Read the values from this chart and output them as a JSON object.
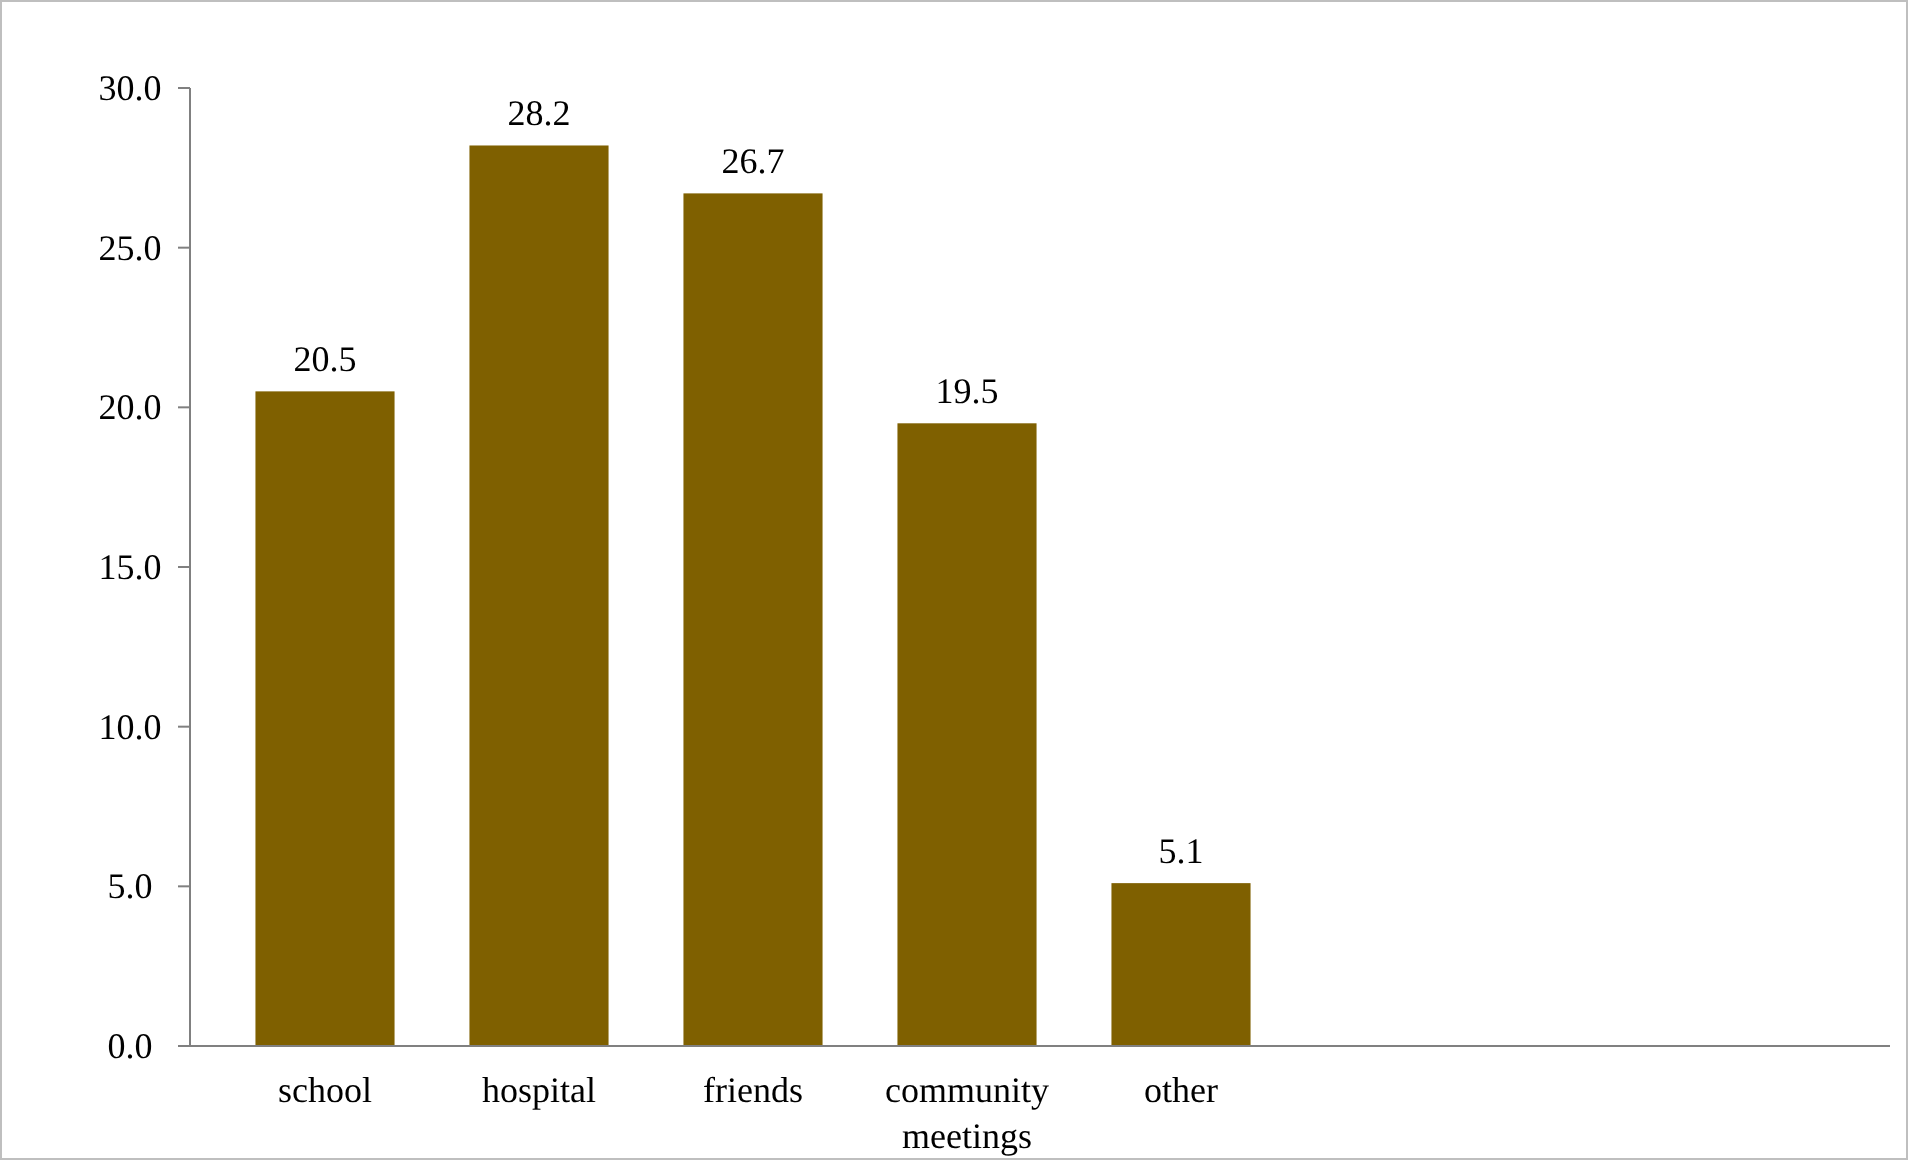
{
  "chart_data": {
    "type": "bar",
    "categories": [
      "school",
      "hospital",
      "friends",
      "community meetings",
      "other"
    ],
    "values": [
      20.5,
      28.2,
      26.7,
      19.5,
      5.1
    ],
    "color": "#7f6000",
    "ylim": [
      0,
      30
    ],
    "yticks": [
      {
        "value": 0,
        "label": "0.0"
      },
      {
        "value": 5,
        "label": "5.0"
      },
      {
        "value": 10,
        "label": "10.0"
      },
      {
        "value": 15,
        "label": "15.0"
      },
      {
        "value": 20,
        "label": "20.0"
      },
      {
        "value": 25,
        "label": "25.0"
      },
      {
        "value": 30,
        "label": "30.0"
      }
    ],
    "data_labels": true,
    "grid": false
  }
}
